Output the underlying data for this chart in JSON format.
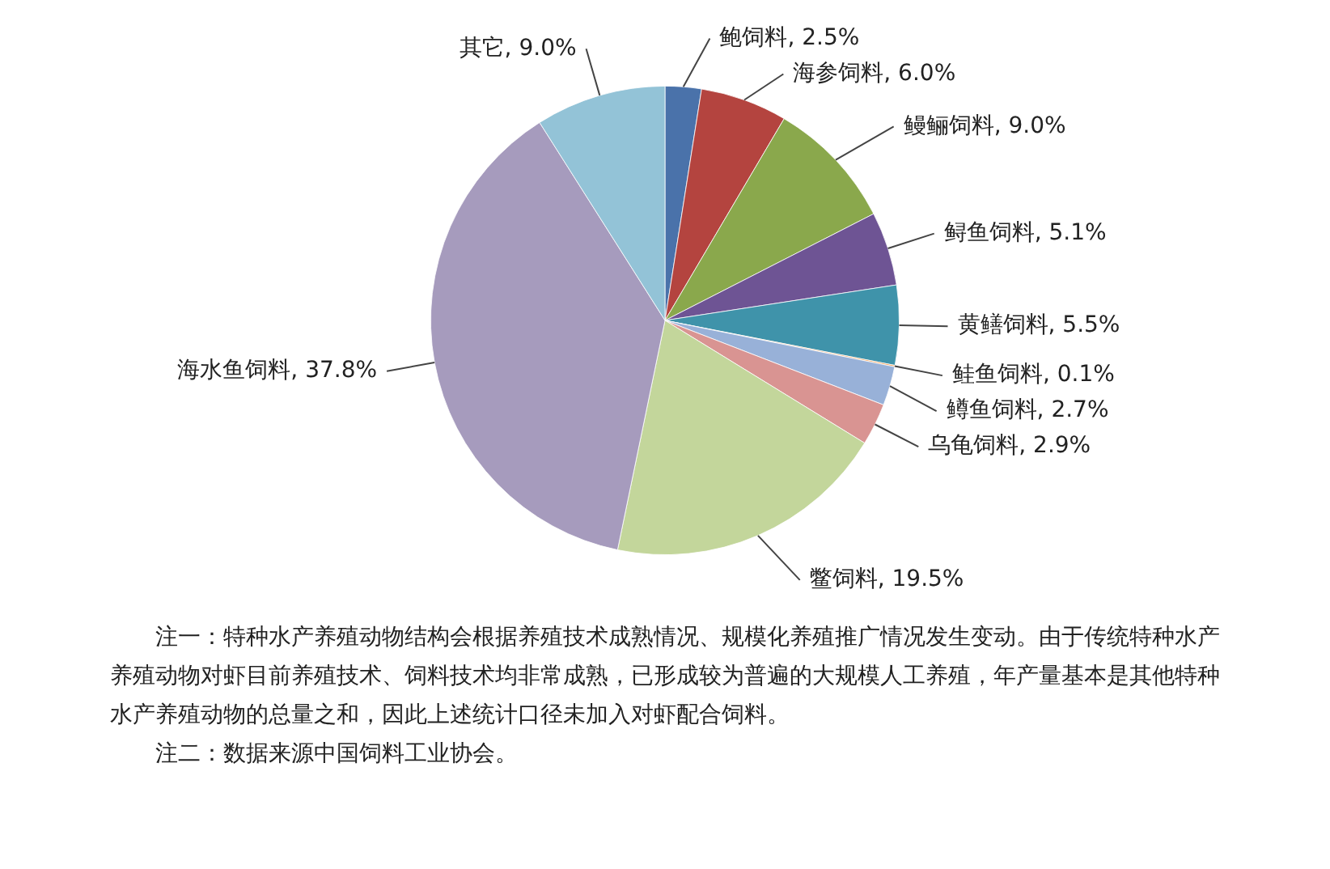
{
  "chart_data": {
    "type": "pie",
    "categories": [
      "鲍饲料",
      "海参饲料",
      "鳗鲡饲料",
      "鲟鱼饲料",
      "黄鳝饲料",
      "鲑鱼饲料",
      "鳟鱼饲料",
      "乌龟饲料",
      "鳖饲料",
      "海水鱼饲料",
      "其它"
    ],
    "values": [
      2.5,
      6.0,
      9.0,
      5.1,
      5.5,
      0.1,
      2.7,
      2.9,
      19.5,
      37.8,
      9.0
    ],
    "value_labels": [
      "2.5%",
      "6.0%",
      "9.0%",
      "5.1%",
      "5.5%",
      "0.1%",
      "2.7%",
      "2.9%",
      "19.5%",
      "37.8%",
      "9.0%"
    ],
    "colors": [
      "#4a72aa",
      "#b4443f",
      "#8aa84c",
      "#6e5494",
      "#3f93aa",
      "#f29a4a",
      "#98b1d8",
      "#d99492",
      "#c3d69b",
      "#a69bbd",
      "#93c3d7"
    ],
    "annotations": [
      "注一：特种水产养殖动物结构会根据养殖技术成熟情况、规模化养殖推广情况发生变动。由于传统特种水产养殖动物对虾目前养殖技术、饲料技术均非常成熟，已形成较为普遍的大规模人工养殖，年产量基本是其他特种水产养殖动物的总量之和，因此上述统计口径未加入对虾配合饲料。",
      "注二：数据来源中国饲料工业协会。"
    ]
  }
}
